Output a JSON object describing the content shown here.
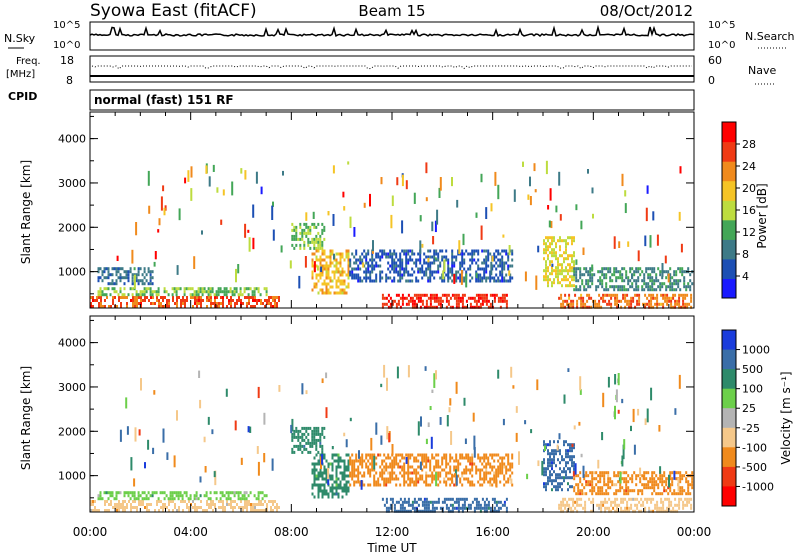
{
  "header": {
    "station": "Syowa East (fitACF)",
    "beam": "Beam 15",
    "date": "08/Oct/2012"
  },
  "nsky_panel": {
    "left_label": "N.Sky",
    "right_label": "N.Search",
    "y_ticks": [
      "10^5",
      "10^0"
    ]
  },
  "freq_panel": {
    "left_label_line1": "Freq.",
    "left_label_line2": "[MHz]",
    "right_label": "Nave",
    "left_ticks": [
      "18",
      "8"
    ],
    "right_ticks": [
      "60",
      "0"
    ]
  },
  "cpid": {
    "label": "CPID",
    "mode": "normal (fast) 151 RF"
  },
  "chart_data": [
    {
      "type": "heatmap",
      "title": "",
      "parameter": "power",
      "xlabel": "Time UT",
      "ylabel": "Slant Range [km]",
      "ylim": [
        180,
        4600
      ],
      "yticks": [
        "1000",
        "2000",
        "3000",
        "4000"
      ],
      "xticks": [
        "00:00",
        "04:00",
        "08:00",
        "12:00",
        "16:00",
        "20:00",
        "00:00"
      ],
      "colorbar": {
        "label": "Power [dB]",
        "range": [
          0,
          32
        ],
        "ticks": [
          "4",
          "8",
          "12",
          "16",
          "20",
          "24",
          "28"
        ],
        "colors": [
          "#1a1aff",
          "#1c4fb4",
          "#3d7a87",
          "#43a657",
          "#bddc3f",
          "#f5c426",
          "#f08a1c",
          "#f03a14",
          "#ff0000"
        ]
      },
      "echo_regions": [
        {
          "t_start": 0.0,
          "t_end": 7.5,
          "r_start": 200,
          "r_end": 450,
          "value": 26
        },
        {
          "t_start": 0.3,
          "t_end": 7.0,
          "r_start": 450,
          "r_end": 650,
          "value": 14
        },
        {
          "t_start": 0.3,
          "t_end": 2.5,
          "r_start": 700,
          "r_end": 1100,
          "value": 8
        },
        {
          "t_start": 8.0,
          "t_end": 9.3,
          "r_start": 1500,
          "r_end": 2100,
          "value": 14
        },
        {
          "t_start": 8.8,
          "t_end": 10.3,
          "r_start": 500,
          "r_end": 1500,
          "value": 20
        },
        {
          "t_start": 10.3,
          "t_end": 16.8,
          "r_start": 800,
          "r_end": 1500,
          "value": 6
        },
        {
          "t_start": 11.6,
          "t_end": 16.6,
          "r_start": 200,
          "r_end": 500,
          "value": 28
        },
        {
          "t_start": 18.0,
          "t_end": 19.2,
          "r_start": 700,
          "r_end": 1800,
          "value": 18
        },
        {
          "t_start": 18.6,
          "t_end": 23.9,
          "r_start": 200,
          "r_end": 500,
          "value": 24
        },
        {
          "t_start": 19.2,
          "t_end": 23.9,
          "r_start": 600,
          "r_end": 1100,
          "value": 10
        }
      ]
    },
    {
      "type": "heatmap",
      "title": "",
      "parameter": "velocity",
      "xlabel": "Time UT",
      "ylabel": "Slant Range [km]",
      "ylim": [
        180,
        4600
      ],
      "yticks": [
        "1000",
        "2000",
        "3000",
        "4000"
      ],
      "xticks": [
        "00:00",
        "04:00",
        "08:00",
        "12:00",
        "16:00",
        "20:00",
        "00:00"
      ],
      "colorbar": {
        "label": "Velocity [m s⁻¹]",
        "ticks": [
          "1000",
          "500",
          "100",
          "25",
          "-25",
          "-100",
          "-500",
          "-1000"
        ],
        "colors": [
          "#1a3cdc",
          "#3a6ea8",
          "#2e8a6a",
          "#6ccf4a",
          "#b4b4b4",
          "#f5c88a",
          "#f08a1c",
          "#f03a14",
          "#ff0000"
        ]
      },
      "echo_regions": [
        {
          "t_start": 0.0,
          "t_end": 7.5,
          "r_start": 200,
          "r_end": 450,
          "value": -100
        },
        {
          "t_start": 0.3,
          "t_end": 7.0,
          "r_start": 450,
          "r_end": 650,
          "value": 50
        },
        {
          "t_start": 8.0,
          "t_end": 9.3,
          "r_start": 1500,
          "r_end": 2100,
          "value": 100
        },
        {
          "t_start": 8.8,
          "t_end": 10.3,
          "r_start": 500,
          "r_end": 1500,
          "value": 300
        },
        {
          "t_start": 10.3,
          "t_end": 16.8,
          "r_start": 800,
          "r_end": 1500,
          "value": -200
        },
        {
          "t_start": 11.6,
          "t_end": 16.6,
          "r_start": 200,
          "r_end": 500,
          "value": 600
        },
        {
          "t_start": 18.0,
          "t_end": 19.2,
          "r_start": 700,
          "r_end": 1800,
          "value": 800
        },
        {
          "t_start": 18.6,
          "t_end": 23.9,
          "r_start": 200,
          "r_end": 500,
          "value": -100
        },
        {
          "t_start": 19.2,
          "t_end": 23.9,
          "r_start": 600,
          "r_end": 1100,
          "value": -300
        }
      ]
    }
  ]
}
